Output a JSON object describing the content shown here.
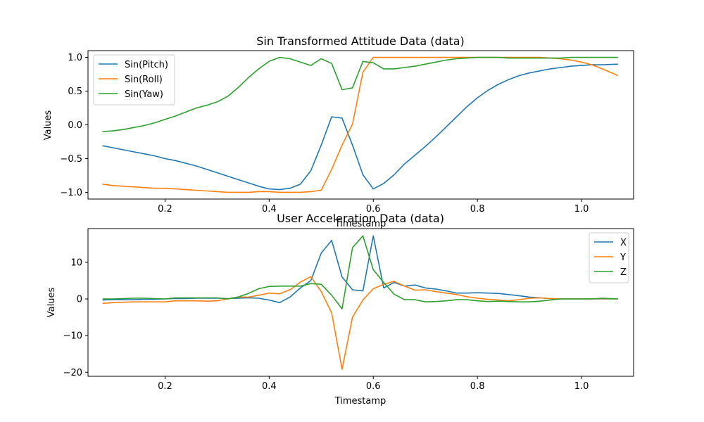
{
  "chart_data": [
    {
      "type": "line",
      "title": "Sin Transformed Attitude Data (data)",
      "xlabel": "Timestamp",
      "ylabel": "Values",
      "xlim": [
        0.052,
        1.1
      ],
      "ylim": [
        -1.1,
        1.1
      ],
      "xticks": [
        0.2,
        0.4,
        0.6,
        0.8,
        1.0
      ],
      "xtick_labels": [
        "0.2",
        "0.4",
        "0.6",
        "0.8",
        "1.0"
      ],
      "yticks": [
        -1.0,
        -0.5,
        0.0,
        0.5,
        1.0
      ],
      "ytick_labels": [
        "−1.0",
        "−0.5",
        "0.0",
        "0.5",
        "1.0"
      ],
      "grid": false,
      "legend": "top-left",
      "series": [
        {
          "name": "Sin(Pitch)",
          "color": "#1f77b4",
          "x": [
            0.08,
            0.1,
            0.12,
            0.14,
            0.16,
            0.18,
            0.2,
            0.22,
            0.24,
            0.26,
            0.28,
            0.3,
            0.32,
            0.34,
            0.36,
            0.38,
            0.4,
            0.42,
            0.44,
            0.46,
            0.48,
            0.5,
            0.52,
            0.54,
            0.56,
            0.58,
            0.6,
            0.62,
            0.64,
            0.66,
            0.68,
            0.7,
            0.72,
            0.74,
            0.76,
            0.78,
            0.8,
            0.82,
            0.84,
            0.86,
            0.88,
            0.9,
            0.92,
            0.94,
            0.96,
            0.98,
            1.0,
            1.02,
            1.04,
            1.07
          ],
          "y": [
            -0.31,
            -0.34,
            -0.37,
            -0.4,
            -0.43,
            -0.46,
            -0.5,
            -0.53,
            -0.57,
            -0.61,
            -0.66,
            -0.71,
            -0.76,
            -0.81,
            -0.86,
            -0.91,
            -0.95,
            -0.96,
            -0.94,
            -0.88,
            -0.68,
            -0.3,
            0.12,
            0.1,
            -0.3,
            -0.74,
            -0.95,
            -0.87,
            -0.74,
            -0.58,
            -0.45,
            -0.32,
            -0.18,
            -0.03,
            0.12,
            0.27,
            0.4,
            0.51,
            0.6,
            0.67,
            0.73,
            0.77,
            0.8,
            0.83,
            0.85,
            0.87,
            0.88,
            0.89,
            0.89,
            0.9
          ]
        },
        {
          "name": "Sin(Roll)",
          "color": "#ff7f0e",
          "x": [
            0.08,
            0.1,
            0.12,
            0.14,
            0.16,
            0.18,
            0.2,
            0.22,
            0.24,
            0.26,
            0.28,
            0.3,
            0.32,
            0.34,
            0.36,
            0.38,
            0.4,
            0.42,
            0.44,
            0.46,
            0.48,
            0.5,
            0.52,
            0.54,
            0.56,
            0.58,
            0.6,
            0.62,
            0.64,
            0.66,
            0.68,
            0.7,
            0.72,
            0.74,
            0.76,
            0.78,
            0.8,
            0.82,
            0.84,
            0.86,
            0.88,
            0.9,
            0.92,
            0.94,
            0.96,
            0.98,
            1.0,
            1.02,
            1.04,
            1.07
          ],
          "y": [
            -0.88,
            -0.9,
            -0.91,
            -0.92,
            -0.93,
            -0.94,
            -0.94,
            -0.95,
            -0.96,
            -0.97,
            -0.98,
            -0.99,
            -1.0,
            -1.0,
            -1.0,
            -0.99,
            -0.99,
            -1.0,
            -1.0,
            -1.0,
            -0.99,
            -0.97,
            -0.66,
            -0.3,
            0.01,
            0.78,
            1.0,
            1.0,
            1.0,
            1.0,
            1.0,
            1.0,
            1.0,
            1.0,
            1.0,
            1.0,
            1.0,
            1.0,
            1.0,
            1.0,
            1.0,
            1.0,
            1.0,
            0.99,
            0.98,
            0.96,
            0.93,
            0.89,
            0.83,
            0.73
          ]
        },
        {
          "name": "Sin(Yaw)",
          "color": "#2ca02c",
          "x": [
            0.08,
            0.1,
            0.12,
            0.14,
            0.16,
            0.18,
            0.2,
            0.22,
            0.24,
            0.26,
            0.28,
            0.3,
            0.32,
            0.34,
            0.36,
            0.38,
            0.4,
            0.42,
            0.44,
            0.46,
            0.48,
            0.5,
            0.52,
            0.54,
            0.56,
            0.58,
            0.6,
            0.62,
            0.64,
            0.66,
            0.68,
            0.7,
            0.72,
            0.74,
            0.76,
            0.78,
            0.8,
            0.82,
            0.84,
            0.86,
            0.88,
            0.9,
            0.92,
            0.94,
            0.96,
            0.98,
            1.0,
            1.02,
            1.04,
            1.07
          ],
          "y": [
            -0.1,
            -0.09,
            -0.07,
            -0.04,
            -0.01,
            0.03,
            0.08,
            0.13,
            0.19,
            0.25,
            0.29,
            0.34,
            0.42,
            0.55,
            0.7,
            0.83,
            0.94,
            1.0,
            0.98,
            0.93,
            0.88,
            0.98,
            0.91,
            0.52,
            0.55,
            0.94,
            0.92,
            0.83,
            0.83,
            0.85,
            0.87,
            0.9,
            0.93,
            0.96,
            0.98,
            0.99,
            1.0,
            1.0,
            1.0,
            0.99,
            0.99,
            0.99,
            0.99,
            0.99,
            0.99,
            1.0,
            1.0,
            1.0,
            1.0,
            1.0
          ]
        }
      ]
    },
    {
      "type": "line",
      "title": "User Acceleration Data (data)",
      "xlabel": "Timestamp",
      "ylabel": "Values",
      "xlim": [
        0.052,
        1.1
      ],
      "ylim": [
        -21.1,
        19.2
      ],
      "xticks": [
        0.2,
        0.4,
        0.6,
        0.8,
        1.0
      ],
      "xtick_labels": [
        "0.2",
        "0.4",
        "0.6",
        "0.8",
        "1.0"
      ],
      "yticks": [
        -20,
        -10,
        0,
        10
      ],
      "ytick_labels": [
        "−20",
        "−10",
        "0",
        "10"
      ],
      "grid": false,
      "legend": "top-right",
      "series": [
        {
          "name": "X",
          "color": "#1f77b4",
          "x": [
            0.08,
            0.1,
            0.12,
            0.14,
            0.16,
            0.18,
            0.2,
            0.22,
            0.24,
            0.26,
            0.28,
            0.3,
            0.32,
            0.34,
            0.36,
            0.38,
            0.4,
            0.42,
            0.44,
            0.46,
            0.48,
            0.5,
            0.52,
            0.54,
            0.56,
            0.58,
            0.6,
            0.62,
            0.64,
            0.66,
            0.68,
            0.7,
            0.72,
            0.74,
            0.76,
            0.78,
            0.8,
            0.82,
            0.84,
            0.86,
            0.88,
            0.9,
            0.92,
            0.94,
            0.96,
            0.98,
            1.0,
            1.02,
            1.04,
            1.07
          ],
          "y": [
            -0.3,
            -0.2,
            -0.2,
            -0.2,
            -0.1,
            -0.1,
            0.0,
            0.1,
            0.1,
            0.2,
            0.2,
            0.2,
            0.1,
            0.2,
            0.3,
            0.2,
            -0.3,
            -1.0,
            0.5,
            3.0,
            5.0,
            12.5,
            16.0,
            6.0,
            2.5,
            2.2,
            17.2,
            3.0,
            4.5,
            3.5,
            3.8,
            3.0,
            2.7,
            2.2,
            1.6,
            1.6,
            1.7,
            1.6,
            1.5,
            1.2,
            0.9,
            0.5,
            0.3,
            0.1,
            0.0,
            0.0,
            0.0,
            0.0,
            0.0,
            0.0
          ]
        },
        {
          "name": "Y",
          "color": "#ff7f0e",
          "x": [
            0.08,
            0.1,
            0.12,
            0.14,
            0.16,
            0.18,
            0.2,
            0.22,
            0.24,
            0.26,
            0.28,
            0.3,
            0.32,
            0.34,
            0.36,
            0.38,
            0.4,
            0.42,
            0.44,
            0.46,
            0.48,
            0.5,
            0.52,
            0.54,
            0.56,
            0.58,
            0.6,
            0.62,
            0.64,
            0.66,
            0.68,
            0.7,
            0.72,
            0.74,
            0.76,
            0.78,
            0.8,
            0.82,
            0.84,
            0.86,
            0.88,
            0.9,
            0.92,
            0.94,
            0.96,
            0.98,
            1.0,
            1.02,
            1.04,
            1.07
          ],
          "y": [
            -1.2,
            -1.0,
            -0.9,
            -0.8,
            -0.8,
            -0.8,
            -0.8,
            -0.5,
            -0.5,
            -0.5,
            -0.6,
            -0.5,
            0.0,
            0.5,
            0.5,
            1.0,
            1.6,
            1.4,
            2.5,
            4.6,
            6.1,
            2.0,
            -3.8,
            -19.2,
            -5.0,
            -0.3,
            2.8,
            4.0,
            4.8,
            3.5,
            2.4,
            2.5,
            2.0,
            1.6,
            1.2,
            0.6,
            0.2,
            -0.1,
            -0.3,
            -0.5,
            -0.2,
            0.2,
            0.3,
            0.1,
            0.0,
            0.0,
            0.0,
            0.0,
            0.1,
            0.0
          ]
        },
        {
          "name": "Z",
          "color": "#2ca02c",
          "x": [
            0.08,
            0.1,
            0.12,
            0.14,
            0.16,
            0.18,
            0.2,
            0.22,
            0.24,
            0.26,
            0.28,
            0.3,
            0.32,
            0.34,
            0.36,
            0.38,
            0.4,
            0.42,
            0.44,
            0.46,
            0.48,
            0.5,
            0.52,
            0.54,
            0.56,
            0.58,
            0.6,
            0.62,
            0.64,
            0.66,
            0.68,
            0.7,
            0.72,
            0.74,
            0.76,
            0.78,
            0.8,
            0.82,
            0.84,
            0.86,
            0.88,
            0.9,
            0.92,
            0.94,
            0.96,
            0.98,
            1.0,
            1.02,
            1.04,
            1.07
          ],
          "y": [
            0.0,
            0.0,
            0.1,
            0.2,
            0.2,
            0.1,
            0.0,
            0.3,
            0.3,
            0.3,
            0.3,
            0.3,
            0.0,
            0.5,
            1.5,
            2.8,
            3.4,
            3.5,
            3.5,
            3.5,
            4.2,
            4.0,
            1.0,
            -2.7,
            14.0,
            17.2,
            8.0,
            4.5,
            1.3,
            -0.2,
            -0.2,
            -0.8,
            -0.7,
            -0.5,
            -0.2,
            -0.2,
            -0.5,
            -0.7,
            -0.6,
            -0.7,
            -0.8,
            -0.8,
            -0.6,
            -0.3,
            0.0,
            0.0,
            0.0,
            0.0,
            0.2,
            0.0
          ]
        }
      ]
    }
  ]
}
